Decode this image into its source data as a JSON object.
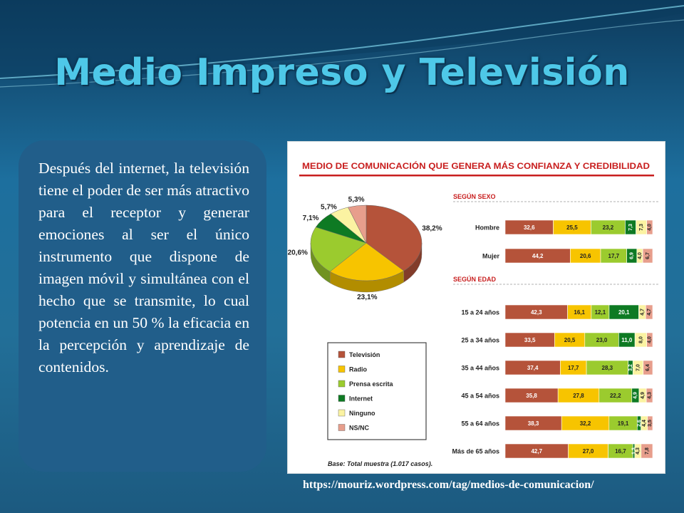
{
  "slide": {
    "title": "Medio Impreso y Televisión",
    "body": "Después del internet, la televisión tiene el poder de ser más atractivo para el receptor y generar emociones al ser el único instrumento que dispone de imagen móvil y simultánea con el hecho que se transmite, lo cual potencia en un 50 % la eficacia en la percepción y aprendizaje de contenidos.",
    "source": "https://mouriz.wordpress.com/tag/medios-de-comunicacion/"
  },
  "colors": {
    "Televisión": "#b5533a",
    "Radio": "#f7c400",
    "Prensa escrita": "#9bcb2e",
    "Internet": "#0e7a23",
    "Ninguno": "#fbf3a2",
    "NS/NC": "#e79e8c",
    "title_red": "#c81e1e"
  },
  "chart_data": [
    {
      "type": "pie",
      "title": "MEDIO DE COMUNICACIÓN QUE GENERA MÁS CONFIANZA Y CREDIBILIDAD",
      "slices": [
        {
          "name": "Televisión",
          "value": 38.2,
          "label": "38,2%"
        },
        {
          "name": "Radio",
          "value": 23.1,
          "label": "23,1%"
        },
        {
          "name": "Prensa escrita",
          "value": 20.6,
          "label": "20,6%"
        },
        {
          "name": "Internet",
          "value": 7.1,
          "label": "7,1%"
        },
        {
          "name": "Ninguno",
          "value": 5.7,
          "label": "5,7%"
        },
        {
          "name": "NS/NC",
          "value": 5.3,
          "label": "5,3%"
        }
      ],
      "legend": [
        "Televisión",
        "Radio",
        "Prensa escrita",
        "Internet",
        "Ninguno",
        "NS/NC"
      ],
      "base_note": "Base: Total muestra (1.017 casos)."
    },
    {
      "type": "bar",
      "stacked": true,
      "orientation": "horizontal",
      "series_names": [
        "Televisión",
        "Radio",
        "Prensa escrita",
        "Internet",
        "Ninguno",
        "NS/NC"
      ],
      "groups": [
        {
          "heading": "SEGÚN SEXO",
          "rows": [
            {
              "label": "Hombre",
              "values": [
                32.6,
                25.5,
                23.2,
                7.3,
                7.3,
                4.0
              ],
              "labels": [
                "32,6",
                "25,5",
                "23,2",
                "7,3",
                "7,3",
                "4,0"
              ]
            },
            {
              "label": "Mujer",
              "values": [
                44.2,
                20.6,
                17.7,
                6.9,
                4.0,
                6.7
              ],
              "labels": [
                "44,2",
                "20,6",
                "17,7",
                "6,9",
                "4,0",
                "6,7"
              ]
            }
          ]
        },
        {
          "heading": "SEGÚN EDAD",
          "rows": [
            {
              "label": "15 a 24 años",
              "values": [
                42.3,
                16.1,
                12.1,
                20.1,
                4.7,
                4.7
              ],
              "labels": [
                "42,3",
                "16,1",
                "12,1",
                "20,1",
                "4,7",
                "4,7"
              ]
            },
            {
              "label": "25 a 34 años",
              "values": [
                33.5,
                20.5,
                23.0,
                11.0,
                8.0,
                4.0
              ],
              "labels": [
                "33,5",
                "20,5",
                "23,0",
                "11,0",
                "8,0",
                "4,0"
              ]
            },
            {
              "label": "35 a 44 años",
              "values": [
                37.4,
                17.7,
                28.3,
                3.2,
                7.0,
                6.4
              ],
              "labels": [
                "37,4",
                "17,7",
                "28,3",
                "3,2",
                "7,0",
                "6,4"
              ]
            },
            {
              "label": "45 a 54 años",
              "values": [
                35.8,
                27.8,
                22.2,
                4.9,
                4.9,
                4.3
              ],
              "labels": [
                "35,8",
                "27,8",
                "22,2",
                "4,9",
                "4,9",
                "4,3"
              ]
            },
            {
              "label": "55 a 64 años",
              "values": [
                38.3,
                32.2,
                19.1,
                2.6,
                4.4,
                3.5
              ],
              "labels": [
                "38,3",
                "32,2",
                "19,1",
                "2,6",
                "4,4",
                "3,5"
              ]
            },
            {
              "label": "Más de 65 años",
              "values": [
                42.7,
                27.0,
                16.7,
                1.3,
                4.3,
                7.8
              ],
              "labels": [
                "42,7",
                "27,0",
                "16,7",
                "1,3",
                "4,3",
                "7,8"
              ]
            }
          ]
        }
      ]
    }
  ]
}
